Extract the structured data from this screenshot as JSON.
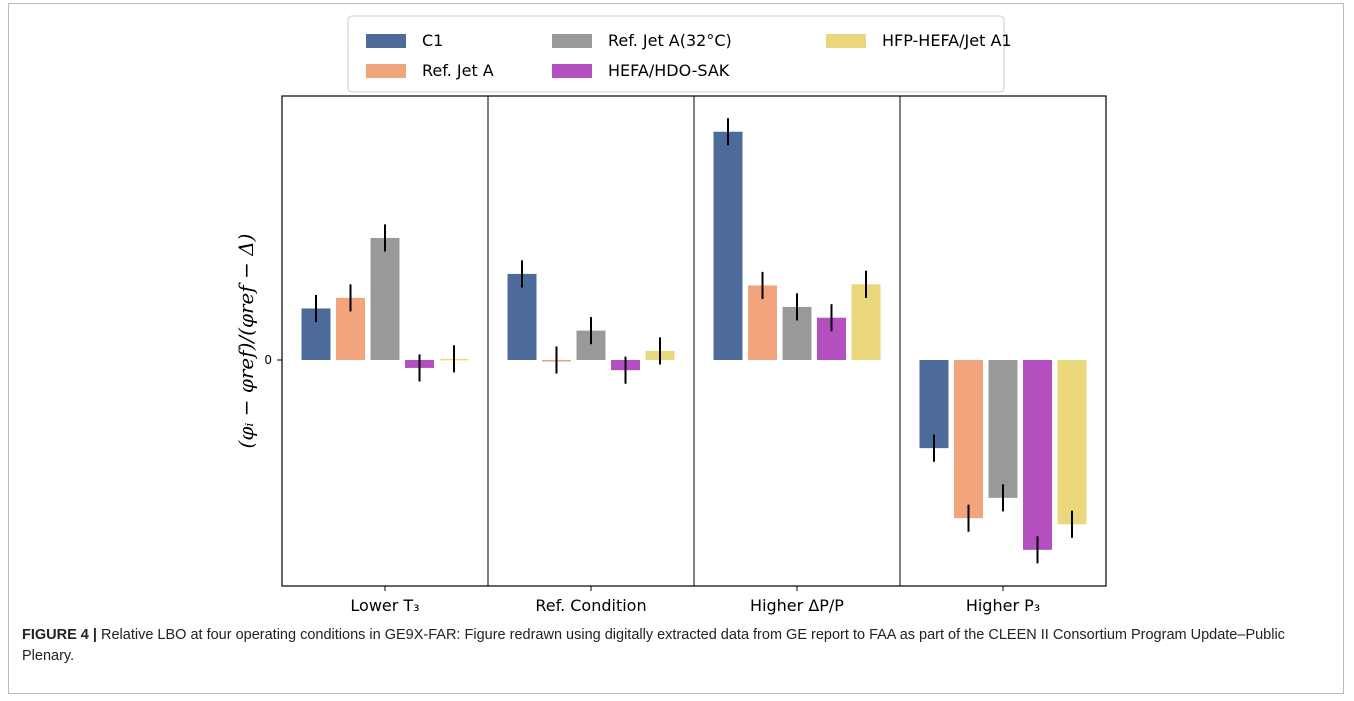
{
  "figure": {
    "caption_label": "FIGURE 4 |",
    "caption_text": "Relative LBO at four operating conditions in GE9X-FAR: Figure redrawn using digitally extracted data from GE report to FAA as part of the CLEEN II Consortium Program Update–Public Plenary."
  },
  "chart_data": {
    "type": "bar",
    "title": "",
    "xlabel": "",
    "ylabel": "(φᵢ − φref)/(φref − Δ)",
    "ytick_labels": [
      "0"
    ],
    "ylim": [
      -1.0,
      1.0
    ],
    "categories": [
      "Lower T₃",
      "Ref. Condition",
      "Higher ΔP/P",
      "Higher P₃"
    ],
    "grid": false,
    "legend_position": "top-center",
    "series": [
      {
        "name": "C1",
        "color": "#4c6b9a",
        "values": [
          0.228,
          0.381,
          1.01,
          -0.39
        ],
        "errors": [
          0.06,
          0.06,
          0.06,
          0.06
        ]
      },
      {
        "name": "Ref. Jet A",
        "color": "#f2a57d",
        "values": [
          0.275,
          0.0,
          0.33,
          -0.7
        ],
        "errors": [
          0.06,
          0.06,
          0.06,
          0.06
        ]
      },
      {
        "name": "Ref. Jet A(32°C)",
        "color": "#999999",
        "values": [
          0.54,
          0.13,
          0.235,
          -0.61
        ],
        "errors": [
          0.06,
          0.06,
          0.06,
          0.06
        ]
      },
      {
        "name": "HEFA/HDO-SAK",
        "color": "#b44fbf",
        "values": [
          -0.035,
          -0.045,
          0.187,
          -0.84
        ],
        "errors": [
          0.06,
          0.06,
          0.06,
          0.06
        ]
      },
      {
        "name": "HFP-HEFA/Jet A1",
        "color": "#ebd77b",
        "values": [
          0.005,
          0.04,
          0.335,
          -0.727
        ],
        "errors": [
          0.06,
          0.06,
          0.06,
          0.06
        ]
      }
    ]
  }
}
